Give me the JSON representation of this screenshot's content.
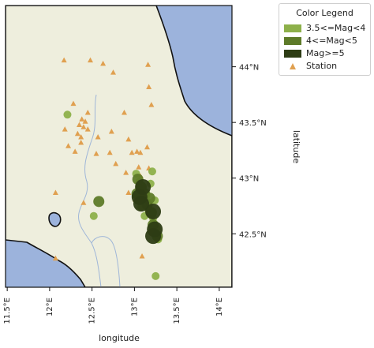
{
  "axes": {
    "xlabel": "longitude",
    "ylabel": "latitude",
    "lon_range": [
      11.48,
      14.15
    ],
    "lat_range": [
      42.02,
      44.55
    ],
    "lon_ticks": [
      "11.5°E",
      "12°E",
      "12.5°E",
      "13°E",
      "13.5°E",
      "14°E"
    ],
    "lon_tick_values": [
      11.5,
      12.0,
      12.5,
      13.0,
      13.5,
      14.0
    ],
    "lat_ticks": [
      "44°N",
      "43.5°N",
      "43°N",
      "42.5°N"
    ],
    "lat_tick_values": [
      44.0,
      43.5,
      43.0,
      42.5
    ]
  },
  "legend": {
    "title": "Color Legend",
    "placement": "top-right outside",
    "items": [
      {
        "label": "3.5<=Mag<4",
        "color": "#8db04a",
        "marker": "square"
      },
      {
        "label": "4<=Mag<5",
        "color": "#5d7a28",
        "marker": "square"
      },
      {
        "label": "Mag>=5",
        "color": "#2d3c14",
        "marker": "square"
      },
      {
        "label": "Station",
        "color": "#e0a050",
        "marker": "triangle"
      }
    ]
  },
  "colors": {
    "land": "#eeeedd",
    "sea": "#9cb3dc",
    "coast": "#111111",
    "river": "#9fb6d8",
    "station": "#e0a050",
    "mag_low": "#8db04a",
    "mag_mid": "#5d7a28",
    "mag_high": "#2d3c14"
  },
  "chart_data": {
    "type": "scatter",
    "title": "",
    "xlabel": "longitude",
    "ylabel": "latitude",
    "xlim": [
      11.48,
      14.15
    ],
    "ylim": [
      42.02,
      44.55
    ],
    "stations": [
      [
        12.17,
        44.06
      ],
      [
        12.48,
        44.06
      ],
      [
        12.63,
        44.03
      ],
      [
        13.16,
        44.02
      ],
      [
        12.75,
        43.95
      ],
      [
        13.17,
        43.82
      ],
      [
        13.2,
        43.66
      ],
      [
        12.28,
        43.67
      ],
      [
        12.45,
        43.59
      ],
      [
        12.88,
        43.59
      ],
      [
        12.38,
        43.53
      ],
      [
        12.42,
        43.51
      ],
      [
        12.35,
        43.48
      ],
      [
        12.4,
        43.46
      ],
      [
        12.45,
        43.44
      ],
      [
        12.18,
        43.44
      ],
      [
        12.33,
        43.4
      ],
      [
        12.37,
        43.37
      ],
      [
        12.57,
        43.37
      ],
      [
        12.73,
        43.42
      ],
      [
        12.37,
        43.32
      ],
      [
        12.22,
        43.29
      ],
      [
        12.3,
        43.24
      ],
      [
        12.55,
        43.22
      ],
      [
        12.71,
        43.23
      ],
      [
        12.93,
        43.35
      ],
      [
        12.97,
        43.23
      ],
      [
        13.03,
        43.24
      ],
      [
        13.07,
        43.23
      ],
      [
        13.15,
        43.28
      ],
      [
        12.78,
        43.13
      ],
      [
        13.05,
        43.1
      ],
      [
        12.9,
        43.05
      ],
      [
        13.17,
        43.09
      ],
      [
        13.07,
        43.02
      ],
      [
        12.07,
        42.87
      ],
      [
        12.93,
        42.87
      ],
      [
        12.4,
        42.78
      ],
      [
        13.01,
        42.81
      ],
      [
        12.07,
        42.28
      ],
      [
        13.09,
        42.3
      ]
    ],
    "events_3_5_to_4": [
      [
        12.21,
        43.57
      ],
      [
        12.52,
        42.66
      ],
      [
        13.06,
        42.97
      ],
      [
        13.1,
        42.9
      ],
      [
        13.14,
        42.84
      ],
      [
        13.17,
        42.78
      ],
      [
        13.16,
        42.72
      ],
      [
        13.22,
        42.64
      ],
      [
        13.12,
        42.66
      ],
      [
        13.08,
        42.74
      ],
      [
        13.19,
        42.95
      ],
      [
        13.26,
        42.55
      ],
      [
        13.28,
        42.45
      ],
      [
        13.21,
        43.06
      ],
      [
        13.02,
        43.04
      ],
      [
        13.24,
        42.8
      ],
      [
        13.25,
        42.12
      ]
    ],
    "events_4_to_5": [
      [
        12.58,
        42.79
      ],
      [
        13.04,
        42.99
      ],
      [
        13.08,
        42.92
      ],
      [
        13.12,
        42.86
      ],
      [
        13.18,
        42.82
      ],
      [
        13.22,
        42.58
      ],
      [
        13.27,
        42.48
      ],
      [
        13.15,
        42.76
      ],
      [
        13.03,
        42.86
      ],
      [
        13.2,
        42.69
      ]
    ],
    "events_mag_ge_5": [
      [
        13.1,
        42.92
      ],
      [
        13.06,
        42.83
      ],
      [
        13.22,
        42.7
      ],
      [
        13.24,
        42.54
      ],
      [
        13.22,
        42.48
      ],
      [
        13.08,
        42.77
      ]
    ]
  }
}
